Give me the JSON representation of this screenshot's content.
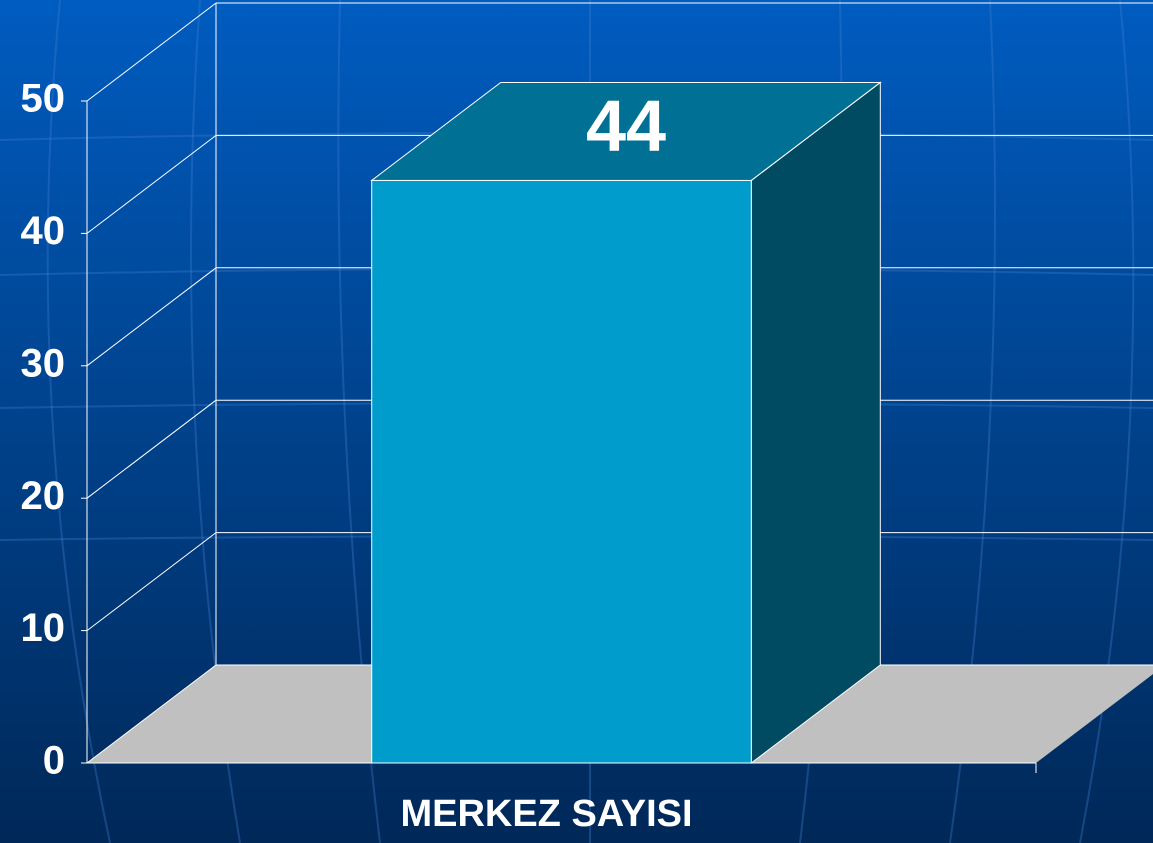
{
  "chart_data": {
    "type": "bar3d",
    "categories": [
      "MERKEZ SAYISI"
    ],
    "values": [
      44
    ],
    "value_labels": [
      "44"
    ],
    "color": "#009ccc",
    "ylim": [
      0,
      50
    ],
    "yticks": [
      0,
      10,
      20,
      30,
      40,
      50
    ],
    "grid": true
  }
}
